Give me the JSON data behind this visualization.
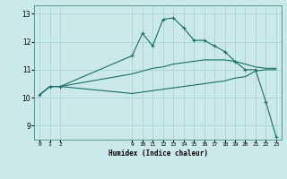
{
  "xlabel": "Humidex (Indice chaleur)",
  "bg_color": "#cce9ea",
  "grid_color": "#aad4d6",
  "line_color": "#1a6e68",
  "xlim": [
    -0.5,
    23.5
  ],
  "ylim": [
    8.5,
    13.3
  ],
  "yticks": [
    9,
    10,
    11,
    12,
    13
  ],
  "xtick_positions": [
    0,
    1,
    2,
    9,
    10,
    11,
    12,
    13,
    14,
    15,
    16,
    17,
    18,
    19,
    20,
    21,
    22,
    23
  ],
  "xtick_labels": [
    "0",
    "1",
    "2",
    "9",
    "10",
    "11",
    "12",
    "13",
    "14",
    "15",
    "16",
    "17",
    "18",
    "19",
    "20",
    "21",
    "22",
    "23"
  ],
  "line1_x": [
    0,
    1,
    2,
    9,
    10,
    11,
    12,
    13,
    14,
    15,
    16,
    17,
    18,
    19,
    20,
    21,
    22,
    23
  ],
  "line1_y": [
    10.1,
    10.4,
    10.4,
    11.5,
    12.3,
    11.85,
    12.8,
    12.85,
    12.5,
    12.05,
    12.05,
    11.85,
    11.65,
    11.3,
    11.0,
    11.0,
    9.85,
    8.6
  ],
  "line2_x": [
    0,
    1,
    2,
    9,
    10,
    11,
    12,
    13,
    14,
    15,
    16,
    17,
    18,
    19,
    20,
    21,
    22,
    23
  ],
  "line2_y": [
    10.1,
    10.4,
    10.4,
    10.85,
    10.95,
    11.05,
    11.1,
    11.2,
    11.25,
    11.3,
    11.35,
    11.35,
    11.35,
    11.3,
    11.2,
    11.1,
    11.05,
    11.05
  ],
  "line3_x": [
    0,
    1,
    2,
    9,
    10,
    11,
    12,
    13,
    14,
    15,
    16,
    17,
    18,
    19,
    20,
    21,
    22,
    23
  ],
  "line3_y": [
    10.1,
    10.4,
    10.4,
    10.15,
    10.2,
    10.25,
    10.3,
    10.35,
    10.4,
    10.45,
    10.5,
    10.55,
    10.6,
    10.7,
    10.75,
    10.95,
    11.0,
    11.0
  ]
}
